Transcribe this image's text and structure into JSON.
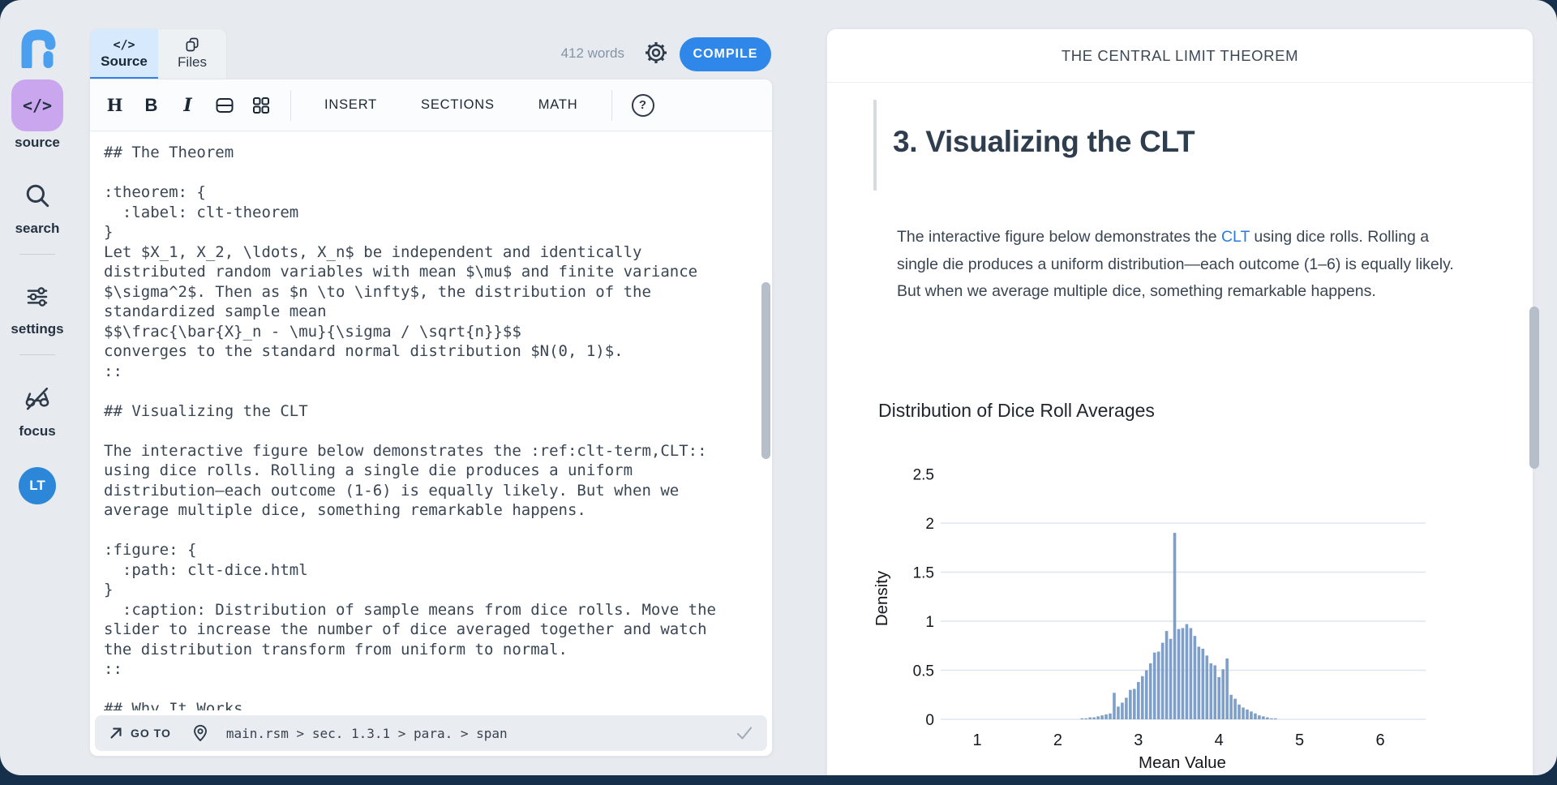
{
  "sidebar": {
    "items": [
      {
        "label": "source",
        "icon": "code-icon",
        "active": true
      },
      {
        "label": "search",
        "icon": "search-icon",
        "active": false
      },
      {
        "label": "settings",
        "icon": "sliders-icon",
        "active": false
      },
      {
        "label": "focus",
        "icon": "focus-off-icon",
        "active": false
      }
    ],
    "avatar_initials": "LT"
  },
  "editor": {
    "tabs": [
      {
        "label": "Source",
        "icon": "code-icon",
        "active": true
      },
      {
        "label": "Files",
        "icon": "copy-icon",
        "active": false
      }
    ],
    "word_count": "412 words",
    "compile_label": "COMPILE",
    "toolbar": {
      "heading": "H",
      "bold": "B",
      "italic": "I",
      "icons": [
        "row-insert-icon",
        "grid-blocks-icon"
      ],
      "menus": [
        "INSERT",
        "SECTIONS",
        "MATH"
      ],
      "help_label": "?"
    },
    "content": "## The Theorem\n\n:theorem: {\n  :label: clt-theorem\n}\nLet $X_1, X_2, \\ldots, X_n$ be independent and identically\ndistributed random variables with mean $\\mu$ and finite variance\n$\\sigma^2$. Then as $n \\to \\infty$, the distribution of the\nstandardized sample mean\n$$\\frac{\\bar{X}_n - \\mu}{\\sigma / \\sqrt{n}}$$\nconverges to the standard normal distribution $N(0, 1)$.\n::\n\n## Visualizing the CLT\n\nThe interactive figure below demonstrates the :ref:clt-term,CLT::\nusing dice rolls. Rolling a single die produces a uniform\ndistribution—each outcome (1-6) is equally likely. But when we\naverage multiple dice, something remarkable happens.\n\n:figure: {\n  :path: clt-dice.html\n}\n  :caption: Distribution of sample means from dice rolls. Move the\nslider to increase the number of dice averaged together and watch\nthe distribution transform from uniform to normal.\n::\n\n## Why It Works",
    "statusbar": {
      "goto_label": "GO TO",
      "goto_icon": "arrow-up-right-icon",
      "location_icon": "location-pin-icon",
      "breadcrumb": "main.rsm > sec. 1.3.1 > para. > span",
      "confirm_icon": "check-icon"
    }
  },
  "preview": {
    "header_title": "THE CENTRAL LIMIT THEOREM",
    "section_heading": "3. Visualizing the CLT",
    "para_before": "The interactive figure below demonstrates the ",
    "para_link": "CLT",
    "para_after": " using dice rolls. Rolling a single die produces a uniform distribution—each outcome (1–6) is equally likely. But when we average multiple dice, something remarkable happens."
  },
  "chart_data": {
    "type": "bar",
    "title": "Distribution of Dice Roll Averages",
    "xlabel": "Mean Value",
    "ylabel": "Density",
    "x_ticks": [
      1,
      2,
      3,
      4,
      5,
      6
    ],
    "y_ticks": [
      0,
      0.5,
      1,
      1.5,
      2,
      2.5
    ],
    "xlim": [
      0.5,
      6.5
    ],
    "ylim": [
      0,
      2.5
    ],
    "grid": "horizontal",
    "bin_width": 0.05,
    "bar_color": "#7d9fc9",
    "bins": [
      2.3,
      2.35,
      2.4,
      2.45,
      2.5,
      2.55,
      2.6,
      2.65,
      2.7,
      2.75,
      2.8,
      2.85,
      2.9,
      2.95,
      3.0,
      3.05,
      3.1,
      3.15,
      3.2,
      3.25,
      3.3,
      3.35,
      3.4,
      3.45,
      3.5,
      3.55,
      3.6,
      3.65,
      3.7,
      3.75,
      3.8,
      3.85,
      3.9,
      3.95,
      4.0,
      4.05,
      4.1,
      4.15,
      4.2,
      4.25,
      4.3,
      4.35,
      4.4,
      4.45,
      4.5,
      4.55,
      4.6,
      4.65,
      4.7
    ],
    "values": [
      0.01,
      0.01,
      0.02,
      0.02,
      0.03,
      0.04,
      0.05,
      0.06,
      0.27,
      0.13,
      0.17,
      0.22,
      0.3,
      0.31,
      0.38,
      0.44,
      0.5,
      0.57,
      0.68,
      0.69,
      0.78,
      0.9,
      0.82,
      1.9,
      0.92,
      0.93,
      0.97,
      0.93,
      0.85,
      0.74,
      0.72,
      0.65,
      0.57,
      0.55,
      0.43,
      0.51,
      0.62,
      0.25,
      0.21,
      0.15,
      0.12,
      0.1,
      0.08,
      0.06,
      0.04,
      0.03,
      0.02,
      0.01,
      0.01
    ]
  },
  "colors": {
    "page_bg": "#16304c",
    "window_bg": "#e7ebef",
    "accent_blue": "#2f87e9",
    "accent_purple": "#c9a6ee",
    "logo_blue": "#4aa0ee",
    "tab_active_bg": "#d7e9fc",
    "tab_underline": "#3182e4",
    "link": "#2b7ce0",
    "bar": "#7d9fc9",
    "gridline": "#dde6ee"
  }
}
